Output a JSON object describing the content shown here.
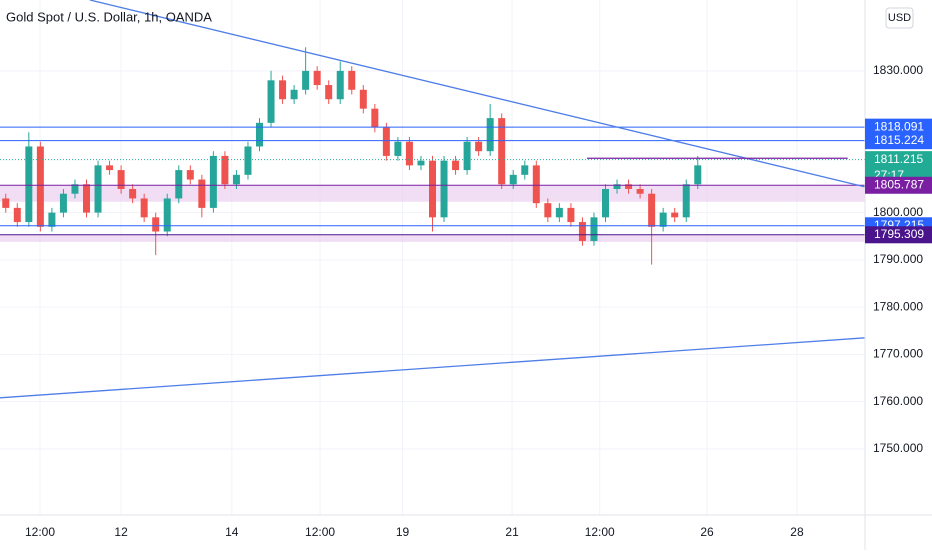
{
  "chart_data": {
    "type": "candlestick",
    "title": "Gold Spot / U.S. Dollar, 1h, OANDA",
    "currency": "USD",
    "countdown": "27:17",
    "xlim": [
      0,
      75
    ],
    "ylim": [
      1736,
      1845
    ],
    "xticks": [
      {
        "value": 3.47,
        "label": "12:00"
      },
      {
        "value": 10.5,
        "label": "12"
      },
      {
        "value": 20.1,
        "label": "14"
      },
      {
        "value": 27.75,
        "label": "12:00"
      },
      {
        "value": 34.9,
        "label": "19"
      },
      {
        "value": 44.4,
        "label": "21"
      },
      {
        "value": 52.0,
        "label": "12:00"
      },
      {
        "value": 61.3,
        "label": "26"
      },
      {
        "value": 69.1,
        "label": "28"
      }
    ],
    "yticks": [
      {
        "value": 1750,
        "label": "1750.000"
      },
      {
        "value": 1760,
        "label": "1760.000"
      },
      {
        "value": 1770,
        "label": "1770.000"
      },
      {
        "value": 1780,
        "label": "1780.000"
      },
      {
        "value": 1790,
        "label": "1790.000"
      },
      {
        "value": 1800,
        "label": "1800.000"
      },
      {
        "value": 1830,
        "label": "1830.000"
      }
    ],
    "grid": true,
    "up_color": "#26a69a",
    "down_color": "#ef5350",
    "open": [
      1803,
      1801,
      1798,
      1814,
      1797,
      1800,
      1804,
      1806,
      1800,
      1810,
      1809,
      1805,
      1803,
      1799,
      1796,
      1803,
      1809,
      1807,
      1801,
      1812,
      1806,
      1808,
      1814,
      1819,
      1828,
      1824,
      1826,
      1830,
      1827,
      1824,
      1830,
      1826,
      1822,
      1818,
      1812,
      1815,
      1810,
      1811,
      1799,
      1811,
      1809,
      1815,
      1813,
      1820,
      1806,
      1808,
      1810,
      1802,
      1799,
      1801,
      1798,
      1794,
      1799,
      1805,
      1806,
      1805,
      1804,
      1797,
      1800,
      1799,
      1806
    ],
    "close": [
      1801,
      1798,
      1814,
      1797,
      1800,
      1804,
      1806,
      1800,
      1810,
      1809,
      1805,
      1803,
      1799,
      1796,
      1803,
      1809,
      1807,
      1801,
      1812,
      1806,
      1808,
      1814,
      1819,
      1828,
      1824,
      1826,
      1830,
      1827,
      1824,
      1830,
      1826,
      1822,
      1818,
      1812,
      1815,
      1810,
      1811,
      1799,
      1811,
      1809,
      1815,
      1813,
      1820,
      1806,
      1808,
      1810,
      1802,
      1799,
      1801,
      1798,
      1794,
      1799,
      1805,
      1806,
      1805,
      1804,
      1797,
      1800,
      1799,
      1806,
      1810
    ],
    "high": [
      1804,
      1802,
      1817,
      1815,
      1801,
      1805,
      1807,
      1807,
      1811,
      1811,
      1810,
      1806,
      1804,
      1800,
      1804,
      1810,
      1810,
      1808,
      1813,
      1813,
      1809,
      1815,
      1820,
      1830,
      1829,
      1827,
      1835,
      1831,
      1828,
      1832,
      1831,
      1827,
      1823,
      1819,
      1816,
      1816,
      1812,
      1812,
      1812,
      1812,
      1816,
      1816,
      1823,
      1821,
      1809,
      1811,
      1811,
      1803,
      1802,
      1802,
      1799,
      1800,
      1806,
      1807,
      1807,
      1806,
      1805,
      1801,
      1801,
      1807,
      1812
    ],
    "low": [
      1800,
      1797,
      1797,
      1796,
      1796,
      1799,
      1803,
      1799,
      1799,
      1808,
      1804,
      1802,
      1798,
      1791,
      1795,
      1802,
      1806,
      1799,
      1800,
      1805,
      1805,
      1807,
      1813,
      1818,
      1823,
      1823,
      1825,
      1826,
      1823,
      1823,
      1825,
      1821,
      1817,
      1811,
      1811,
      1809,
      1809,
      1796,
      1798,
      1808,
      1808,
      1812,
      1812,
      1805,
      1805,
      1807,
      1801,
      1798,
      1798,
      1797,
      1793,
      1793,
      1798,
      1804,
      1804,
      1803,
      1789,
      1796,
      1798,
      1798,
      1805
    ],
    "zones": [
      {
        "from": 1802.3,
        "to": 1805.787,
        "color": "#e9c8ec"
      },
      {
        "from": 1793.8,
        "to": 1795.309,
        "color": "#e9c8ec"
      }
    ],
    "levels": [
      {
        "value": 1818.091,
        "color": "#2962ff"
      },
      {
        "value": 1815.224,
        "color": "#2962ff"
      },
      {
        "value": 1811.215,
        "color": "#22ab94"
      },
      {
        "value": 1805.787,
        "color": "#7b1fa2"
      },
      {
        "value": 1797.215,
        "color": "#2962ff"
      },
      {
        "value": 1795.309,
        "color": "#4a148c"
      }
    ],
    "trend_lines": [
      {
        "x": [
          7.8,
          75
        ],
        "y": [
          1845,
          1805.45
        ],
        "color": "#4f7ee8"
      },
      {
        "x": [
          0,
          75
        ],
        "y": [
          1760.8,
          1773.5
        ],
        "color": "#4f7ee8"
      },
      {
        "x": [
          50.9,
          73.5
        ],
        "y": [
          1811.5,
          1811.5
        ],
        "color": "#7b1fa2"
      }
    ]
  }
}
